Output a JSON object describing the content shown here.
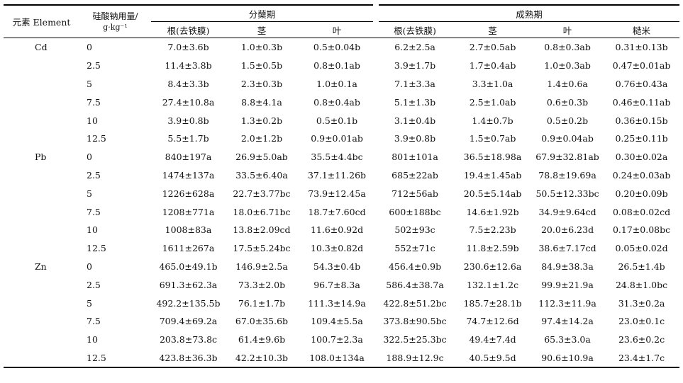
{
  "header": {
    "element_col": "元素 Element",
    "dose_col_line1": "硅酸钠用量/",
    "dose_col_line2": "g·kg⁻¹",
    "group1": "分蘖期",
    "group2": "成熟期",
    "sub1": [
      "根(去铁膜)",
      "茎",
      "叶"
    ],
    "sub2": [
      "根(去铁膜)",
      "茎",
      "叶",
      "糙米"
    ]
  },
  "rows": [
    {
      "element": "Cd",
      "dose": "0",
      "cells": [
        "7.0±3.6b",
        "1.0±0.3b",
        "0.5±0.04b",
        "6.2±2.5a",
        "2.7±0.5ab",
        "0.8±0.3ab",
        "0.31±0.13b"
      ]
    },
    {
      "element": "",
      "dose": "2.5",
      "cells": [
        "11.4±3.8b",
        "1.5±0.5b",
        "0.8±0.1ab",
        "3.9±1.7b",
        "1.7±0.4ab",
        "1.0±0.3ab",
        "0.47±0.01ab"
      ]
    },
    {
      "element": "",
      "dose": "5",
      "cells": [
        "8.4±3.3b",
        "2.3±0.3b",
        "1.0±0.1a",
        "7.1±3.3a",
        "3.3±1.0a",
        "1.4±0.6a",
        "0.76±0.43a"
      ]
    },
    {
      "element": "",
      "dose": "7.5",
      "cells": [
        "27.4±10.8a",
        "8.8±4.1a",
        "0.8±0.4ab",
        "5.1±1.3b",
        "2.5±1.0ab",
        "0.6±0.3b",
        "0.46±0.11ab"
      ]
    },
    {
      "element": "",
      "dose": "10",
      "cells": [
        "3.9±0.8b",
        "1.3±0.2b",
        "0.5±0.1b",
        "3.1±0.4b",
        "1.4±0.7b",
        "0.5±0.2b",
        "0.36±0.15b"
      ]
    },
    {
      "element": "",
      "dose": "12.5",
      "cells": [
        "5.5±1.7b",
        "2.0±1.2b",
        "0.9±0.01ab",
        "3.9±0.8b",
        "1.5±0.7ab",
        "0.9±0.04ab",
        "0.25±0.11b"
      ]
    },
    {
      "element": "Pb",
      "dose": "0",
      "cells": [
        "840±197a",
        "26.9±5.0ab",
        "35.5±4.4bc",
        "801±101a",
        "36.5±18.98a",
        "67.9±32.81ab",
        "0.30±0.02a"
      ]
    },
    {
      "element": "",
      "dose": "2.5",
      "cells": [
        "1474±137a",
        "33.5±6.40a",
        "37.1±11.26b",
        "685±22ab",
        "19.4±1.45ab",
        "78.8±19.69a",
        "0.24±0.03ab"
      ]
    },
    {
      "element": "",
      "dose": "5",
      "cells": [
        "1226±628a",
        "22.7±3.77bc",
        "73.9±12.45a",
        "712±56ab",
        "20.5±5.14ab",
        "50.5±12.33bc",
        "0.20±0.09b"
      ]
    },
    {
      "element": "",
      "dose": "7.5",
      "cells": [
        "1208±771a",
        "18.0±6.71bc",
        "18.7±7.60cd",
        "600±188bc",
        "14.6±1.92b",
        "34.9±9.64cd",
        "0.08±0.02cd"
      ]
    },
    {
      "element": "",
      "dose": "10",
      "cells": [
        "1008±83a",
        "13.8±2.09cd",
        "11.6±0.92d",
        "502±93c",
        "7.5±2.23b",
        "20.0±6.23d",
        "0.17±0.08bc"
      ]
    },
    {
      "element": "",
      "dose": "12.5",
      "cells": [
        "1611±267a",
        "17.5±5.24bc",
        "10.3±0.82d",
        "552±71c",
        "11.8±2.59b",
        "38.6±7.17cd",
        "0.05±0.02d"
      ]
    },
    {
      "element": "Zn",
      "dose": "0",
      "cells": [
        "465.0±49.1b",
        "146.9±2.5a",
        "54.3±0.4b",
        "456.4±0.9b",
        "230.6±12.6a",
        "84.9±38.3a",
        "26.5±1.4b"
      ]
    },
    {
      "element": "",
      "dose": "2.5",
      "cells": [
        "691.3±62.3a",
        "73.3±2.0b",
        "96.7±8.3a",
        "586.4±38.7a",
        "132.1±1.2c",
        "99.9±21.9a",
        "24.8±1.0bc"
      ]
    },
    {
      "element": "",
      "dose": "5",
      "cells": [
        "492.2±135.5b",
        "76.1±1.7b",
        "111.3±14.9a",
        "422.8±51.2bc",
        "185.7±28.1b",
        "112.3±11.9a",
        "31.3±0.2a"
      ]
    },
    {
      "element": "",
      "dose": "7.5",
      "cells": [
        "709.4±69.2a",
        "67.0±35.6b",
        "109.4±5.5a",
        "373.8±90.5bc",
        "74.7±12.6d",
        "97.4±14.2a",
        "23.0±0.1c"
      ]
    },
    {
      "element": "",
      "dose": "10",
      "cells": [
        "203.8±73.8c",
        "61.4±9.6b",
        "100.7±2.3a",
        "322.5±25.3bc",
        "49.4±7.4d",
        "65.3±3.0a",
        "23.6±0.2c"
      ]
    },
    {
      "element": "",
      "dose": "12.5",
      "cells": [
        "423.8±36.3b",
        "42.2±10.3b",
        "108.0±134a",
        "188.9±12.9c",
        "40.5±9.5d",
        "90.6±10.9a",
        "23.4±1.7c"
      ]
    }
  ]
}
